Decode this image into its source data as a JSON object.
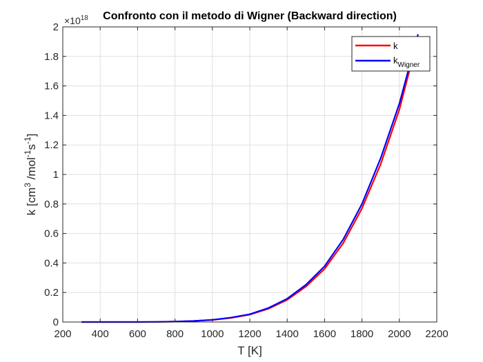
{
  "chart_data": {
    "type": "line",
    "title": "Confronto con il metodo di Wigner (Backward direction)",
    "xlabel": "T [K]",
    "ylabel": {
      "prefix": "k [cm",
      "sup1": "3",
      "mid1": " /mol",
      "sup2": "-1",
      "mid2": "s",
      "sup3": "-1",
      "suffix": "]"
    },
    "y_exponent": {
      "base": "×10",
      "power": "18"
    },
    "xlim": [
      200,
      2200
    ],
    "ylim": [
      0,
      2
    ],
    "grid": true,
    "legend_position": "top-right",
    "xticks": [
      200,
      400,
      600,
      800,
      1000,
      1200,
      1400,
      1600,
      1800,
      2000,
      2200
    ],
    "yticks": [
      0,
      0.2,
      0.4,
      0.6,
      0.8,
      1,
      1.2,
      1.4,
      1.6,
      1.8,
      2
    ],
    "ytick_labels": [
      "0",
      "0.2",
      "0.4",
      "0.6",
      "0.8",
      "1",
      "1.2",
      "1.4",
      "1.6",
      "1.8",
      "2"
    ],
    "x": [
      300,
      400,
      500,
      600,
      700,
      800,
      900,
      1000,
      1100,
      1200,
      1300,
      1400,
      1500,
      1600,
      1700,
      1800,
      1900,
      2000,
      2100
    ],
    "series": [
      {
        "name": "k",
        "color": "#ff0000",
        "values": [
          0,
          0,
          0,
          0,
          0.001,
          0.003,
          0.007,
          0.014,
          0.028,
          0.05,
          0.09,
          0.15,
          0.24,
          0.36,
          0.535,
          0.77,
          1.07,
          1.44,
          1.93
        ]
      },
      {
        "name": "Wigner",
        "legend_main": "k",
        "legend_sub": "Wigner",
        "color": "#0000ff",
        "values": [
          0,
          0,
          0,
          0,
          0.001,
          0.003,
          0.007,
          0.015,
          0.03,
          0.053,
          0.095,
          0.158,
          0.252,
          0.378,
          0.56,
          0.8,
          1.11,
          1.48,
          1.95
        ]
      }
    ]
  }
}
